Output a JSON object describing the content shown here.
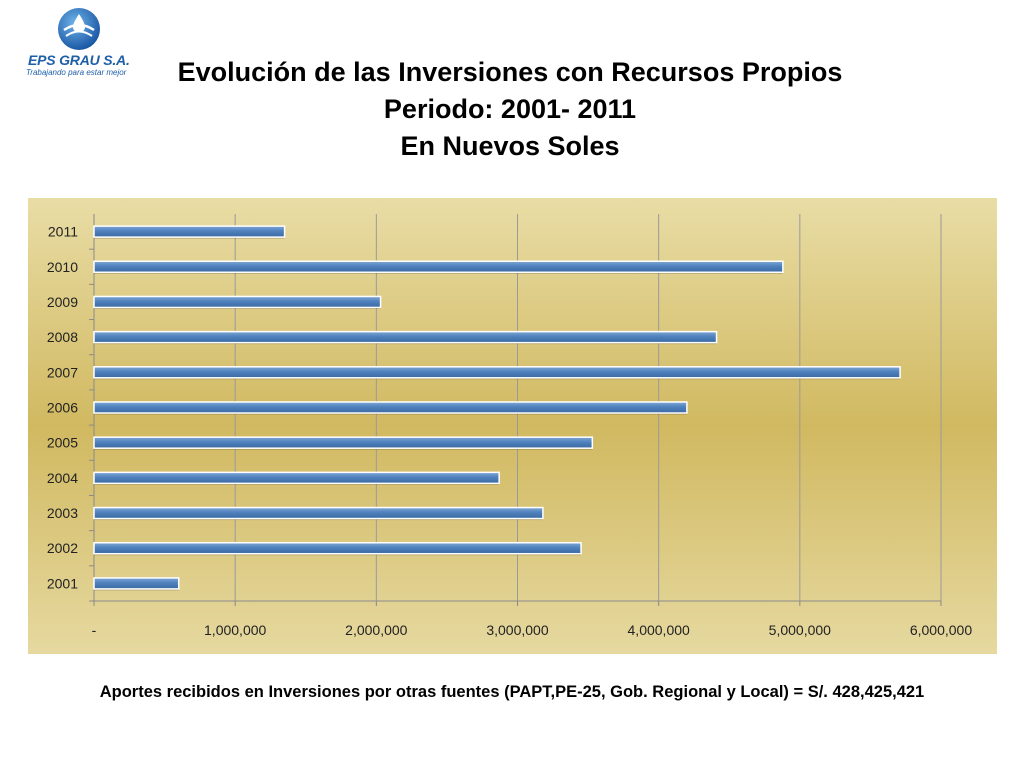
{
  "logo": {
    "name": "EPS GRAU S.A.",
    "tagline": "Trabajando para estar mejor"
  },
  "header": {
    "title_line1": "Evolución de las Inversiones con Recursos Propios",
    "title_line2": "Periodo: 2001- 2011",
    "title_line3": "En Nuevos Soles"
  },
  "chart_data": {
    "type": "bar",
    "orientation": "horizontal",
    "categories": [
      "2001",
      "2002",
      "2003",
      "2004",
      "2005",
      "2006",
      "2007",
      "2008",
      "2009",
      "2010",
      "2011"
    ],
    "values": [
      600000,
      3450000,
      3180000,
      2870000,
      3530000,
      4200000,
      5710000,
      4410000,
      2030000,
      4880000,
      1350000
    ],
    "x_tick_labels": [
      "-",
      "1,000,000",
      "2,000,000",
      "3,000,000",
      "4,000,000",
      "5,000,000",
      "6,000,000"
    ],
    "xlim": [
      0,
      6000000
    ],
    "grid": true,
    "legend": "none",
    "bar_color": "#4f81bd",
    "background_color": "#dcc878"
  },
  "footer": {
    "note": "Aportes recibidos en Inversiones por otras fuentes (PAPT,PE-25, Gob. Regional y Local) = S/. 428,425,421"
  }
}
